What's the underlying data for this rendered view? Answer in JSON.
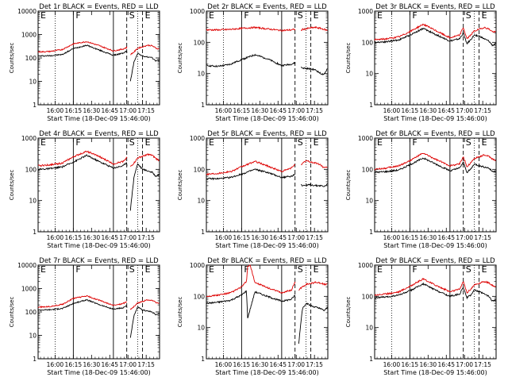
{
  "figure": {
    "ylabel": "Counts/sec",
    "xlabel": "Start Time (18-Dec-09 15:46:00)",
    "x_tick_labels": [
      "16:00",
      "16:15",
      "16:30",
      "16:45",
      "17:00",
      "17:15"
    ],
    "y_tick_labels": [
      "1",
      "10",
      "100",
      "1000",
      "10000"
    ],
    "region_labels": [
      "E",
      "F",
      "S",
      "E"
    ],
    "colors": {
      "events": "#000000",
      "lld": "#dd0000",
      "axes": "#000000"
    }
  },
  "chart_data": [
    {
      "type": "line",
      "title": "Det 1r BLACK = Events, RED = LLD",
      "xlabel": "Start Time (18-Dec-09 15:46:00)",
      "ylabel": "Counts/sec",
      "x_unit": "minutes after 15:46:00",
      "xlim": [
        0,
        100
      ],
      "ylim": [
        1,
        10000
      ],
      "y_scale": "log",
      "region_labels": [
        "E",
        "F",
        "S",
        "E"
      ],
      "dotted_lines": [
        14,
        82
      ],
      "solid_lines": [
        29,
        62
      ],
      "dashed_lines": [
        73,
        86
      ],
      "gaps": [
        [
          73.5,
          76
        ]
      ],
      "series": [
        {
          "color": "#000000",
          "x": [
            0,
            10,
            20,
            29,
            40,
            50,
            62,
            70,
            73,
            76,
            79,
            82,
            86,
            90,
            94,
            97,
            100
          ],
          "y": [
            120,
            125,
            140,
            250,
            350,
            220,
            130,
            160,
            200,
            10,
            70,
            160,
            120,
            110,
            100,
            75,
            80
          ]
        },
        {
          "color": "#dd0000",
          "x": [
            0,
            10,
            20,
            29,
            40,
            50,
            62,
            70,
            73,
            76,
            79,
            82,
            86,
            90,
            94,
            97,
            100
          ],
          "y": [
            180,
            190,
            230,
            400,
            500,
            340,
            200,
            240,
            280,
            140,
            180,
            260,
            300,
            350,
            330,
            260,
            240
          ]
        }
      ]
    },
    {
      "type": "line",
      "title": "Det 2r BLACK = Events, RED = LLD",
      "xlabel": "Start Time (18-Dec-09 15:46:00)",
      "ylabel": "Counts/sec",
      "x_unit": "minutes after 15:46:00",
      "xlim": [
        0,
        100
      ],
      "ylim": [
        1,
        1000
      ],
      "y_scale": "log",
      "region_labels": [
        "E",
        "F",
        "S",
        "E"
      ],
      "dotted_lines": [
        14,
        82
      ],
      "solid_lines": [
        29,
        62
      ],
      "dashed_lines": [
        73,
        86
      ],
      "gaps": [
        [
          73.5,
          78
        ]
      ],
      "series": [
        {
          "color": "#000000",
          "x": [
            0,
            10,
            20,
            29,
            40,
            50,
            62,
            70,
            73,
            79,
            86,
            90,
            94,
            97,
            100
          ],
          "y": [
            18,
            17,
            20,
            28,
            40,
            30,
            18,
            20,
            22,
            15,
            14,
            13,
            10,
            9,
            16
          ]
        },
        {
          "color": "#dd0000",
          "x": [
            0,
            10,
            20,
            29,
            40,
            50,
            62,
            70,
            73,
            76,
            79,
            82,
            86,
            90,
            94,
            97,
            100
          ],
          "y": [
            250,
            250,
            260,
            280,
            300,
            270,
            240,
            250,
            260,
            190,
            260,
            270,
            290,
            300,
            280,
            260,
            240
          ]
        }
      ]
    },
    {
      "type": "line",
      "title": "Det 3r BLACK = Events, RED = LLD",
      "xlabel": "Start Time (18-Dec-09 15:46:00)",
      "ylabel": "Counts/sec",
      "x_unit": "minutes after 15:46:00",
      "xlim": [
        0,
        100
      ],
      "ylim": [
        1,
        1000
      ],
      "y_scale": "log",
      "region_labels": [
        "E",
        "F",
        "S",
        "E"
      ],
      "dotted_lines": [
        14,
        82
      ],
      "solid_lines": [
        29,
        62
      ],
      "dashed_lines": [
        73,
        86
      ],
      "gaps": [],
      "series": [
        {
          "color": "#000000",
          "x": [
            0,
            10,
            20,
            29,
            40,
            50,
            62,
            70,
            73,
            76,
            79,
            82,
            86,
            90,
            94,
            97,
            100
          ],
          "y": [
            100,
            105,
            120,
            170,
            280,
            180,
            110,
            130,
            200,
            90,
            120,
            170,
            160,
            130,
            110,
            80,
            90
          ]
        },
        {
          "color": "#dd0000",
          "x": [
            0,
            10,
            20,
            29,
            40,
            50,
            62,
            70,
            73,
            76,
            79,
            82,
            86,
            90,
            94,
            97,
            100
          ],
          "y": [
            120,
            130,
            150,
            220,
            380,
            240,
            140,
            170,
            300,
            130,
            170,
            230,
            260,
            300,
            270,
            220,
            210
          ]
        }
      ]
    },
    {
      "type": "line",
      "title": "Det 4r BLACK = Events, RED = LLD",
      "xlabel": "Start Time (18-Dec-09 15:46:00)",
      "ylabel": "Counts/sec",
      "x_unit": "minutes after 15:46:00",
      "xlim": [
        0,
        100
      ],
      "ylim": [
        1,
        1000
      ],
      "y_scale": "log",
      "region_labels": [
        "E",
        "F",
        "S",
        "E"
      ],
      "dotted_lines": [
        14,
        82
      ],
      "solid_lines": [
        29,
        62
      ],
      "dashed_lines": [
        73,
        86
      ],
      "gaps": [
        [
          73.5,
          76
        ]
      ],
      "series": [
        {
          "color": "#000000",
          "x": [
            0,
            10,
            20,
            29,
            40,
            50,
            62,
            70,
            73,
            76,
            79,
            82,
            86,
            90,
            94,
            97,
            100
          ],
          "y": [
            100,
            105,
            120,
            170,
            280,
            180,
            110,
            130,
            170,
            5,
            60,
            150,
            100,
            90,
            80,
            60,
            70
          ]
        },
        {
          "color": "#dd0000",
          "x": [
            0,
            10,
            20,
            29,
            40,
            50,
            62,
            70,
            73,
            76,
            79,
            82,
            86,
            90,
            94,
            97,
            100
          ],
          "y": [
            130,
            140,
            160,
            250,
            380,
            260,
            150,
            180,
            240,
            120,
            160,
            230,
            260,
            300,
            280,
            220,
            190
          ]
        }
      ]
    },
    {
      "type": "line",
      "title": "Det 5r BLACK = Events, RED = LLD",
      "xlabel": "Start Time (18-Dec-09 15:46:00)",
      "ylabel": "Counts/sec",
      "x_unit": "minutes after 15:46:00",
      "xlim": [
        0,
        100
      ],
      "ylim": [
        1,
        1000
      ],
      "y_scale": "log",
      "region_labels": [
        "E",
        "F",
        "S",
        "E"
      ],
      "dotted_lines": [
        14,
        82
      ],
      "solid_lines": [
        29,
        62
      ],
      "dashed_lines": [
        73,
        86
      ],
      "gaps": [
        [
          73.5,
          78
        ]
      ],
      "series": [
        {
          "color": "#000000",
          "x": [
            0,
            10,
            20,
            29,
            40,
            50,
            62,
            70,
            73,
            79,
            86,
            90,
            94,
            97,
            100
          ],
          "y": [
            50,
            50,
            55,
            70,
            100,
            80,
            55,
            60,
            70,
            30,
            32,
            30,
            30,
            28,
            35
          ]
        },
        {
          "color": "#dd0000",
          "x": [
            0,
            10,
            20,
            29,
            40,
            50,
            62,
            70,
            73,
            76,
            79,
            82,
            86,
            90,
            94,
            97,
            100
          ],
          "y": [
            70,
            75,
            85,
            120,
            180,
            130,
            85,
            110,
            150,
            110,
            150,
            190,
            170,
            160,
            140,
            110,
            120
          ]
        }
      ]
    },
    {
      "type": "line",
      "title": "Det 6r BLACK = Events, RED = LLD",
      "xlabel": "Start Time (18-Dec-09 15:46:00)",
      "ylabel": "Counts/sec",
      "x_unit": "minutes after 15:46:00",
      "xlim": [
        0,
        100
      ],
      "ylim": [
        1,
        1000
      ],
      "y_scale": "log",
      "region_labels": [
        "E",
        "F",
        "S",
        "E"
      ],
      "dotted_lines": [
        14,
        82
      ],
      "solid_lines": [
        29,
        62
      ],
      "dashed_lines": [
        73,
        86
      ],
      "gaps": [],
      "series": [
        {
          "color": "#000000",
          "x": [
            0,
            10,
            20,
            29,
            40,
            50,
            62,
            70,
            73,
            76,
            79,
            82,
            86,
            90,
            94,
            97,
            100
          ],
          "y": [
            80,
            85,
            95,
            140,
            230,
            150,
            90,
            110,
            170,
            80,
            100,
            150,
            130,
            120,
            110,
            85,
            90
          ]
        },
        {
          "color": "#dd0000",
          "x": [
            0,
            10,
            20,
            29,
            40,
            50,
            62,
            70,
            73,
            76,
            79,
            82,
            86,
            90,
            94,
            97,
            100
          ],
          "y": [
            100,
            110,
            130,
            190,
            330,
            210,
            130,
            150,
            260,
            120,
            160,
            220,
            250,
            290,
            260,
            210,
            190
          ]
        }
      ]
    },
    {
      "type": "line",
      "title": "Det 7r BLACK = Events, RED = LLD",
      "xlabel": "Start Time (18-Dec-09 15:46:00)",
      "ylabel": "Counts/sec",
      "x_unit": "minutes after 15:46:00",
      "xlim": [
        0,
        100
      ],
      "ylim": [
        1,
        10000
      ],
      "y_scale": "log",
      "region_labels": [
        "E",
        "F",
        "S",
        "E"
      ],
      "dotted_lines": [
        14,
        82
      ],
      "solid_lines": [
        29,
        62
      ],
      "dashed_lines": [
        73,
        86
      ],
      "gaps": [
        [
          73.5,
          76
        ]
      ],
      "series": [
        {
          "color": "#000000",
          "x": [
            0,
            10,
            20,
            29,
            40,
            50,
            62,
            70,
            73,
            76,
            79,
            82,
            86,
            90,
            94,
            97,
            100
          ],
          "y": [
            120,
            125,
            140,
            230,
            330,
            210,
            130,
            150,
            190,
            8,
            70,
            160,
            120,
            110,
            100,
            75,
            80
          ]
        },
        {
          "color": "#dd0000",
          "x": [
            0,
            10,
            20,
            29,
            40,
            50,
            62,
            70,
            73,
            76,
            79,
            82,
            86,
            90,
            94,
            97,
            100
          ],
          "y": [
            160,
            170,
            210,
            380,
            480,
            320,
            190,
            230,
            270,
            130,
            170,
            240,
            280,
            330,
            310,
            250,
            230
          ]
        }
      ]
    },
    {
      "type": "line",
      "title": "Det 8r BLACK = Events, RED = LLD",
      "xlabel": "Start Time (18-Dec-09 15:46:00)",
      "ylabel": "Counts/sec",
      "x_unit": "minutes after 15:46:00",
      "xlim": [
        0,
        100
      ],
      "ylim": [
        1,
        1000
      ],
      "y_scale": "log",
      "region_labels": [
        "E",
        "F",
        "S",
        "E"
      ],
      "dotted_lines": [
        14,
        82
      ],
      "solid_lines": [
        29,
        62
      ],
      "dashed_lines": [
        73,
        86
      ],
      "gaps": [
        [
          73.5,
          76
        ]
      ],
      "series": [
        {
          "color": "#000000",
          "x": [
            0,
            10,
            20,
            29,
            33,
            34,
            40,
            50,
            62,
            70,
            73,
            76,
            79,
            82,
            86,
            90,
            94,
            97,
            100
          ],
          "y": [
            60,
            65,
            75,
            110,
            150,
            20,
            140,
            100,
            70,
            80,
            110,
            3,
            40,
            60,
            50,
            45,
            40,
            35,
            45
          ]
        },
        {
          "color": "#dd0000",
          "x": [
            0,
            10,
            20,
            29,
            33,
            34,
            36,
            40,
            50,
            62,
            70,
            73,
            76,
            79,
            82,
            86,
            90,
            94,
            97,
            100
          ],
          "y": [
            100,
            110,
            130,
            200,
            300,
            900,
            1000,
            280,
            190,
            130,
            160,
            280,
            160,
            200,
            240,
            260,
            280,
            270,
            240,
            250
          ]
        }
      ]
    },
    {
      "type": "line",
      "title": "Det 9r BLACK = Events, RED = LLD",
      "xlabel": "Start Time (18-Dec-09 15:46:00)",
      "ylabel": "Counts/sec",
      "x_unit": "minutes after 15:46:00",
      "xlim": [
        0,
        100
      ],
      "ylim": [
        1,
        1000
      ],
      "y_scale": "log",
      "region_labels": [
        "E",
        "F",
        "S",
        "E"
      ],
      "dotted_lines": [
        14,
        82
      ],
      "solid_lines": [
        29,
        62
      ],
      "dashed_lines": [
        73,
        86
      ],
      "gaps": [],
      "series": [
        {
          "color": "#000000",
          "x": [
            0,
            10,
            20,
            29,
            40,
            50,
            62,
            70,
            73,
            76,
            79,
            82,
            86,
            90,
            94,
            97,
            100
          ],
          "y": [
            90,
            95,
            110,
            150,
            250,
            160,
            100,
            120,
            190,
            90,
            110,
            160,
            140,
            120,
            100,
            70,
            80
          ]
        },
        {
          "color": "#dd0000",
          "x": [
            0,
            10,
            20,
            29,
            40,
            50,
            62,
            70,
            73,
            76,
            79,
            82,
            86,
            90,
            94,
            97,
            100
          ],
          "y": [
            110,
            120,
            140,
            210,
            360,
            230,
            140,
            170,
            300,
            130,
            170,
            230,
            260,
            300,
            270,
            220,
            200
          ]
        }
      ]
    }
  ]
}
